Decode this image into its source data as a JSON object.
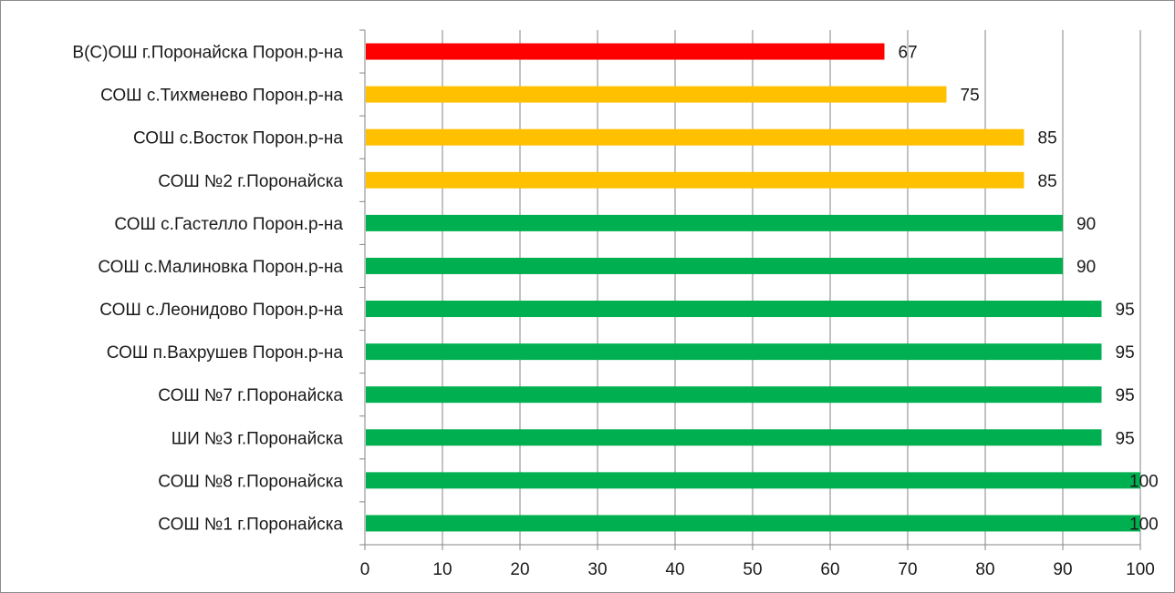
{
  "chart_data": {
    "type": "bar",
    "orientation": "horizontal",
    "title": "",
    "xlabel": "",
    "ylabel": "",
    "xlim": [
      0,
      100
    ],
    "x_ticks": [
      0,
      10,
      20,
      30,
      40,
      50,
      60,
      70,
      80,
      90,
      100
    ],
    "grid": "vertical",
    "legend": "none",
    "categories": [
      "В(С)ОШ г.Поронайска Порон.р-на",
      "СОШ с.Тихменево Порон.р-на",
      "СОШ с.Восток Порон.р-на",
      "СОШ №2 г.Поронайска",
      "СОШ с.Гастелло Порон.р-на",
      "СОШ с.Малиновка Порон.р-на",
      "СОШ с.Леонидово Порон.р-на",
      "СОШ п.Вахрушев Порон.р-на",
      "СОШ №7 г.Поронайска",
      "ШИ №3 г.Поронайска",
      "СОШ №8 г.Поронайска",
      "СОШ №1 г.Поронайска"
    ],
    "values": [
      67,
      75,
      85,
      85,
      90,
      90,
      95,
      95,
      95,
      95,
      100,
      100
    ],
    "bar_colors": [
      "#ff0000",
      "#ffc000",
      "#ffc000",
      "#ffc000",
      "#00b050",
      "#00b050",
      "#00b050",
      "#00b050",
      "#00b050",
      "#00b050",
      "#00b050",
      "#00b050"
    ],
    "colors": {
      "axis": "#868686",
      "grid": "#868686",
      "text": "#1a1a1a"
    }
  }
}
